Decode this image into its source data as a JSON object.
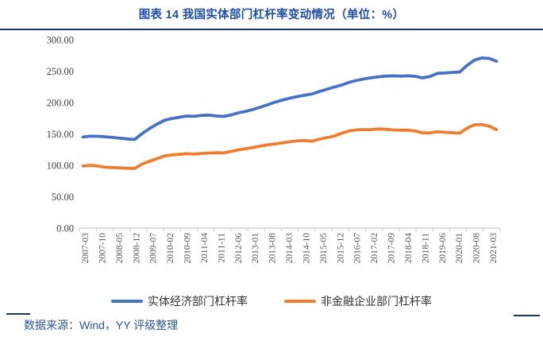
{
  "title": {
    "text": "图表 14 我国实体部门杠杆率变动情况（单位：%）"
  },
  "footer": {
    "source": "数据来源：Wind，YY 评级整理"
  },
  "colors": {
    "title_text": "#1F4EA1",
    "source_text": "#2D5492",
    "rule": "#17375E",
    "axis_line": "#C6C6C6",
    "axis_label": "#595959",
    "series_real_economy": "#4472C4",
    "series_non_financial": "#ED7D31"
  },
  "chart_data": {
    "type": "line",
    "title": "图表 14 我国实体部门杠杆率变动情况（单位：%）",
    "xlabel": "",
    "ylabel": "",
    "ylim": [
      0,
      300
    ],
    "grid": false,
    "legend_position": "bottom",
    "y_tick_labels": [
      "0.00",
      "50.00",
      "100.00",
      "150.00",
      "200.00",
      "250.00",
      "300.00"
    ],
    "x_tick_labels": [
      "2007-03",
      "2007-10",
      "2008-05",
      "2008-12",
      "2009-07",
      "2010-02",
      "2010-09",
      "2011-04",
      "2011-11",
      "2012-06",
      "2013-01",
      "2013-08",
      "2014-03",
      "2014-10",
      "2015-05",
      "2015-12",
      "2016-07",
      "2017-02",
      "2017-09",
      "2018-04",
      "2018-11",
      "2019-06",
      "2020-01",
      "2020-08",
      "2021-03"
    ],
    "x": [
      "2007-03",
      "2007-06",
      "2007-09",
      "2007-12",
      "2008-03",
      "2008-06",
      "2008-09",
      "2008-12",
      "2009-03",
      "2009-06",
      "2009-09",
      "2009-12",
      "2010-03",
      "2010-06",
      "2010-09",
      "2010-12",
      "2011-03",
      "2011-06",
      "2011-09",
      "2011-12",
      "2012-03",
      "2012-06",
      "2012-09",
      "2012-12",
      "2013-03",
      "2013-06",
      "2013-09",
      "2013-12",
      "2014-03",
      "2014-06",
      "2014-09",
      "2014-12",
      "2015-03",
      "2015-06",
      "2015-09",
      "2015-12",
      "2016-03",
      "2016-06",
      "2016-09",
      "2016-12",
      "2017-03",
      "2017-06",
      "2017-09",
      "2017-12",
      "2018-03",
      "2018-06",
      "2018-09",
      "2018-12",
      "2019-03",
      "2019-06",
      "2019-09",
      "2019-12",
      "2020-03",
      "2020-06",
      "2020-09",
      "2020-12",
      "2021-03"
    ],
    "series": [
      {
        "id": "real-economy",
        "name": "实体经济部门杠杆率",
        "color": "#4472C4",
        "values": [
          145.0,
          146.5,
          146.2,
          145.4,
          144.4,
          143.2,
          142.0,
          141.2,
          150.5,
          158.5,
          165.5,
          171.5,
          174.5,
          176.5,
          178.5,
          178.0,
          179.5,
          180.0,
          178.6,
          177.8,
          180.0,
          183.5,
          186.0,
          188.8,
          192.5,
          196.5,
          200.5,
          203.9,
          207.0,
          209.5,
          211.5,
          213.5,
          217.5,
          221.0,
          224.5,
          227.7,
          232.0,
          235.0,
          237.5,
          239.4,
          241.0,
          242.0,
          242.5,
          242.0,
          242.5,
          241.8,
          239.2,
          241.5,
          246.5,
          247.0,
          248.0,
          248.5,
          259.0,
          267.5,
          271.0,
          270.3,
          265.8
        ]
      },
      {
        "id": "non-financial-corporate",
        "name": "非金融企业部门杠杆率",
        "color": "#ED7D31",
        "values": [
          99.0,
          100.0,
          98.8,
          97.0,
          96.5,
          96.0,
          95.3,
          95.2,
          102.0,
          106.5,
          110.5,
          114.8,
          116.5,
          117.5,
          118.5,
          117.8,
          118.8,
          119.5,
          120.0,
          119.8,
          122.0,
          124.5,
          126.5,
          128.3,
          130.5,
          132.5,
          134.0,
          135.8,
          137.5,
          139.0,
          139.5,
          138.5,
          141.5,
          144.0,
          146.5,
          151.0,
          154.5,
          156.5,
          157.0,
          156.8,
          158.0,
          157.3,
          156.5,
          156.0,
          156.0,
          154.5,
          151.8,
          151.5,
          153.5,
          152.5,
          152.0,
          151.2,
          159.0,
          164.5,
          164.8,
          162.5,
          157.0
        ]
      }
    ]
  }
}
